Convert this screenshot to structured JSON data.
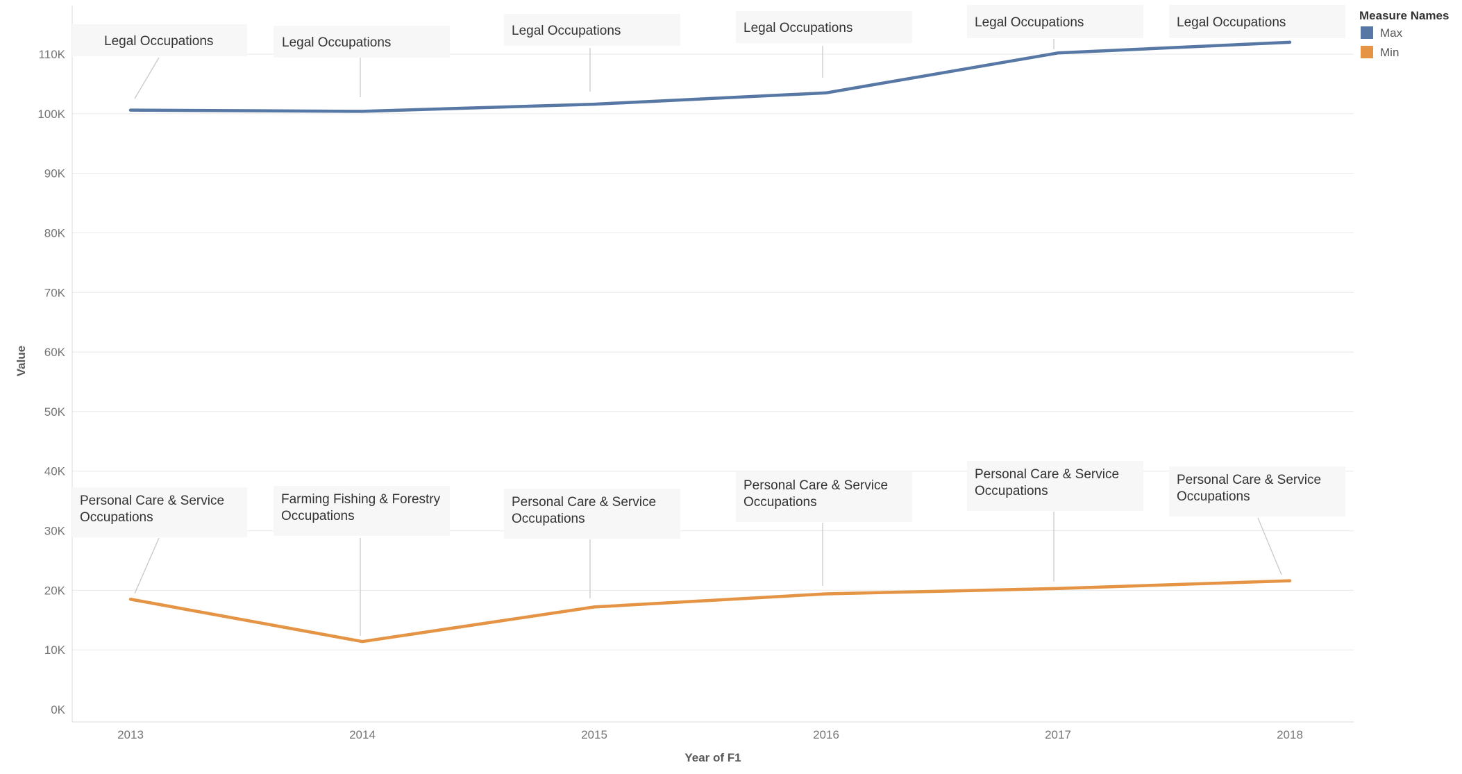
{
  "chart_data": {
    "type": "line",
    "x": [
      "2013",
      "2014",
      "2015",
      "2016",
      "2017",
      "2018"
    ],
    "xlabel": "Year of F1",
    "ylabel": "Value",
    "ylim": [
      0,
      115000
    ],
    "yticks": [
      {
        "value": 0,
        "label": "0K"
      },
      {
        "value": 10000,
        "label": "10K"
      },
      {
        "value": 20000,
        "label": "20K"
      },
      {
        "value": 30000,
        "label": "30K"
      },
      {
        "value": 40000,
        "label": "40K"
      },
      {
        "value": 50000,
        "label": "50K"
      },
      {
        "value": 60000,
        "label": "60K"
      },
      {
        "value": 70000,
        "label": "70K"
      },
      {
        "value": 80000,
        "label": "80K"
      },
      {
        "value": 90000,
        "label": "90K"
      },
      {
        "value": 100000,
        "label": "100K"
      },
      {
        "value": 110000,
        "label": "110K"
      }
    ],
    "grid": "horizontal",
    "legend": {
      "title": "Measure Names",
      "placement": "top-right"
    },
    "series": [
      {
        "name": "Max",
        "color": "#5778a4",
        "values": [
          100600,
          100400,
          101600,
          103500,
          110200,
          112000
        ],
        "annotations": [
          [
            "Legal Occupations"
          ],
          [
            "Legal Occupations"
          ],
          [
            "Legal Occupations"
          ],
          [
            "Legal Occupations"
          ],
          [
            "Legal Occupations"
          ],
          [
            "Legal Occupations"
          ]
        ]
      },
      {
        "name": "Min",
        "color": "#e49444",
        "values": [
          18500,
          11400,
          17200,
          19400,
          20300,
          21600
        ],
        "annotations": [
          [
            "Personal Care & Service",
            "Occupations"
          ],
          [
            "Farming Fishing & Forestry",
            "Occupations"
          ],
          [
            "Personal Care & Service",
            "Occupations"
          ],
          [
            "Personal Care & Service",
            "Occupations"
          ],
          [
            "Personal Care & Service",
            "Occupations"
          ],
          [
            "Personal Care & Service",
            "Occupations"
          ]
        ]
      }
    ]
  }
}
